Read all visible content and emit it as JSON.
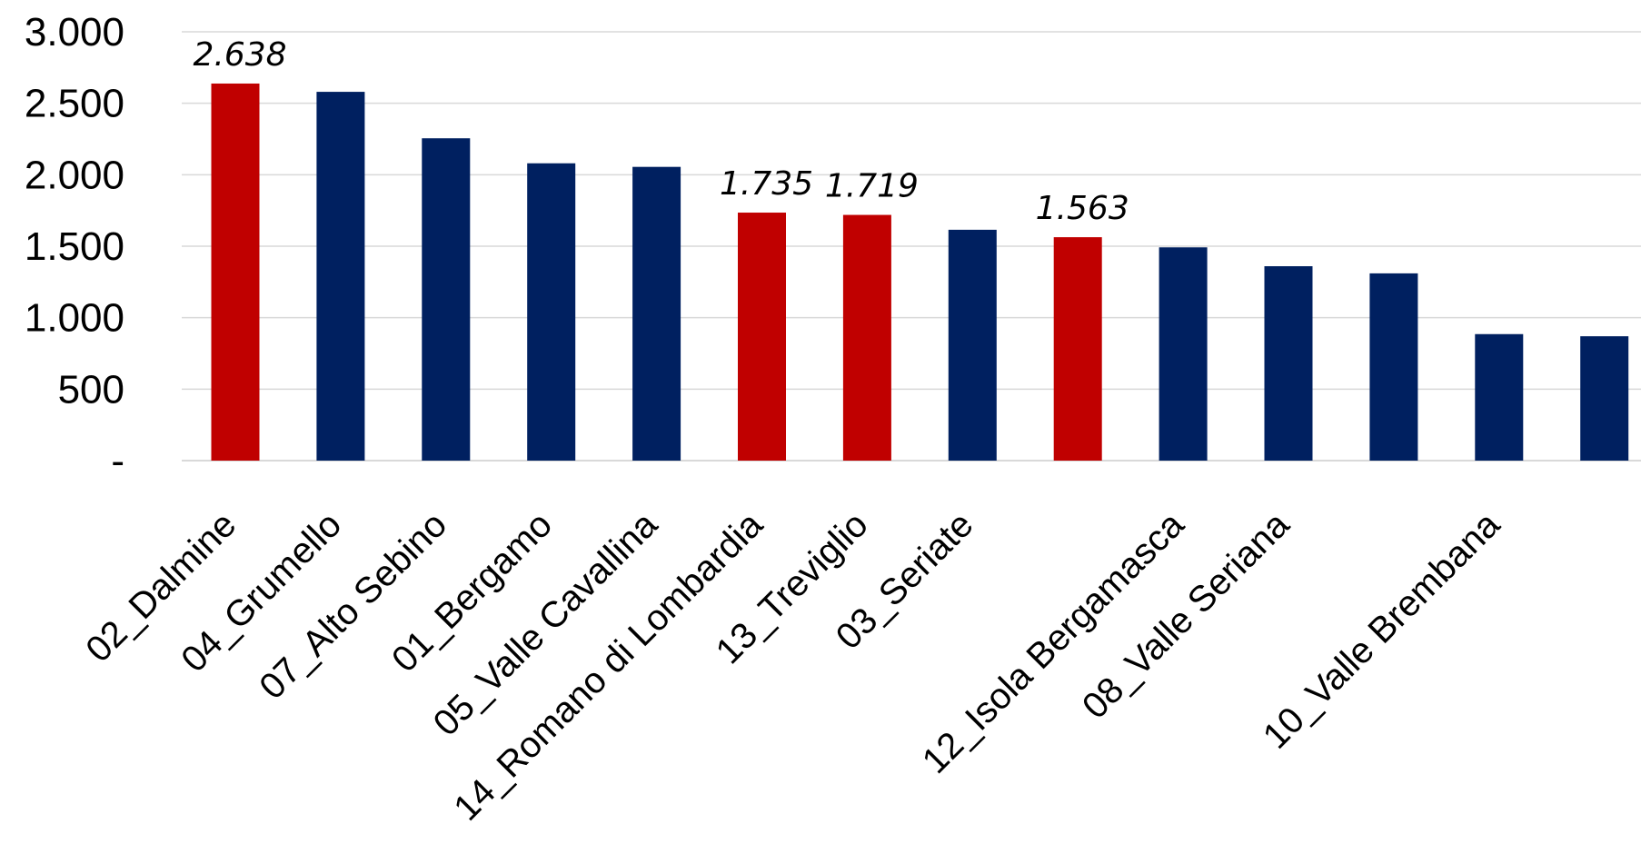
{
  "chart_data": {
    "type": "bar",
    "title": "",
    "xlabel": "",
    "ylabel": "",
    "ylim": [
      0,
      3000
    ],
    "yticks": [
      0,
      500,
      1000,
      1500,
      2000,
      2500,
      3000
    ],
    "ytick_labels": [
      "-",
      "500",
      "1.000",
      "1.500",
      "2.000",
      "2.500",
      "3.000"
    ],
    "grid": true,
    "legend": "none",
    "colors": {
      "highlight": "#c00000",
      "default": "#002060"
    },
    "categories": [
      "02_Dalmine",
      "04_Grumello",
      "07_Alto Sebino",
      "01_Bergamo",
      "05_Valle Cavallina",
      "14_Romano di Lombardia",
      "13_Treviglio",
      "03_Seriate",
      "",
      "12_Isola Bergamasca",
      "08_Valle Seriana",
      "",
      "10_Valle Brembana",
      ""
    ],
    "values": [
      2638,
      2580,
      2255,
      2080,
      2055,
      1735,
      1719,
      1615,
      1563,
      1492,
      1360,
      1310,
      885,
      870
    ],
    "highlighted": [
      true,
      false,
      false,
      false,
      false,
      true,
      true,
      false,
      true,
      false,
      false,
      false,
      false,
      false
    ],
    "data_labels": [
      "2.638",
      "",
      "",
      "",
      "",
      "1.735",
      "1.719",
      "",
      "1.563",
      "",
      "",
      "",
      "",
      ""
    ]
  }
}
